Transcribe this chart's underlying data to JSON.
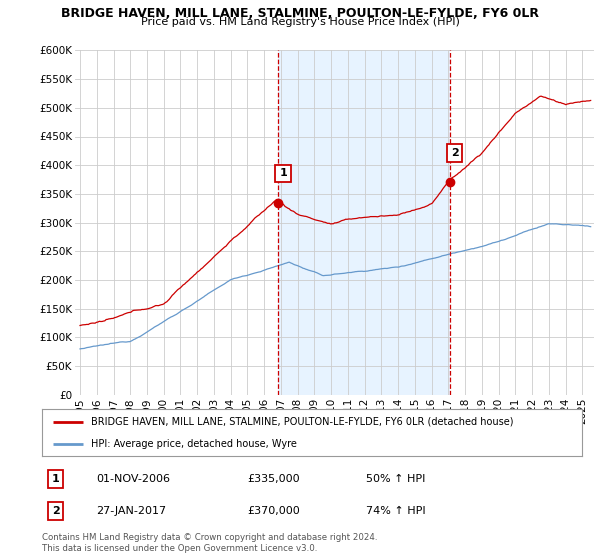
{
  "title": "BRIDGE HAVEN, MILL LANE, STALMINE, POULTON-LE-FYLDE, FY6 0LR",
  "subtitle": "Price paid vs. HM Land Registry's House Price Index (HPI)",
  "ylim": [
    0,
    600000
  ],
  "yticks": [
    0,
    50000,
    100000,
    150000,
    200000,
    250000,
    300000,
    350000,
    400000,
    450000,
    500000,
    550000,
    600000
  ],
  "ytick_labels": [
    "£0",
    "£50K",
    "£100K",
    "£150K",
    "£200K",
    "£250K",
    "£300K",
    "£350K",
    "£400K",
    "£450K",
    "£500K",
    "£550K",
    "£600K"
  ],
  "sale1_date": 2006.83,
  "sale1_price": 335000,
  "sale1_label": "1",
  "sale2_date": 2017.07,
  "sale2_price": 370000,
  "sale2_label": "2",
  "legend_house": "BRIDGE HAVEN, MILL LANE, STALMINE, POULTON-LE-FYLDE, FY6 0LR (detached house)",
  "legend_hpi": "HPI: Average price, detached house, Wyre",
  "table_rows": [
    [
      "1",
      "01-NOV-2006",
      "£335,000",
      "50% ↑ HPI"
    ],
    [
      "2",
      "27-JAN-2017",
      "£370,000",
      "74% ↑ HPI"
    ]
  ],
  "footnote": "Contains HM Land Registry data © Crown copyright and database right 2024.\nThis data is licensed under the Open Government Licence v3.0.",
  "house_color": "#cc0000",
  "hpi_color": "#6699cc",
  "shade_color": "#ddeeff",
  "vline_color": "#cc0000",
  "background_color": "#ffffff",
  "grid_color": "#cccccc"
}
